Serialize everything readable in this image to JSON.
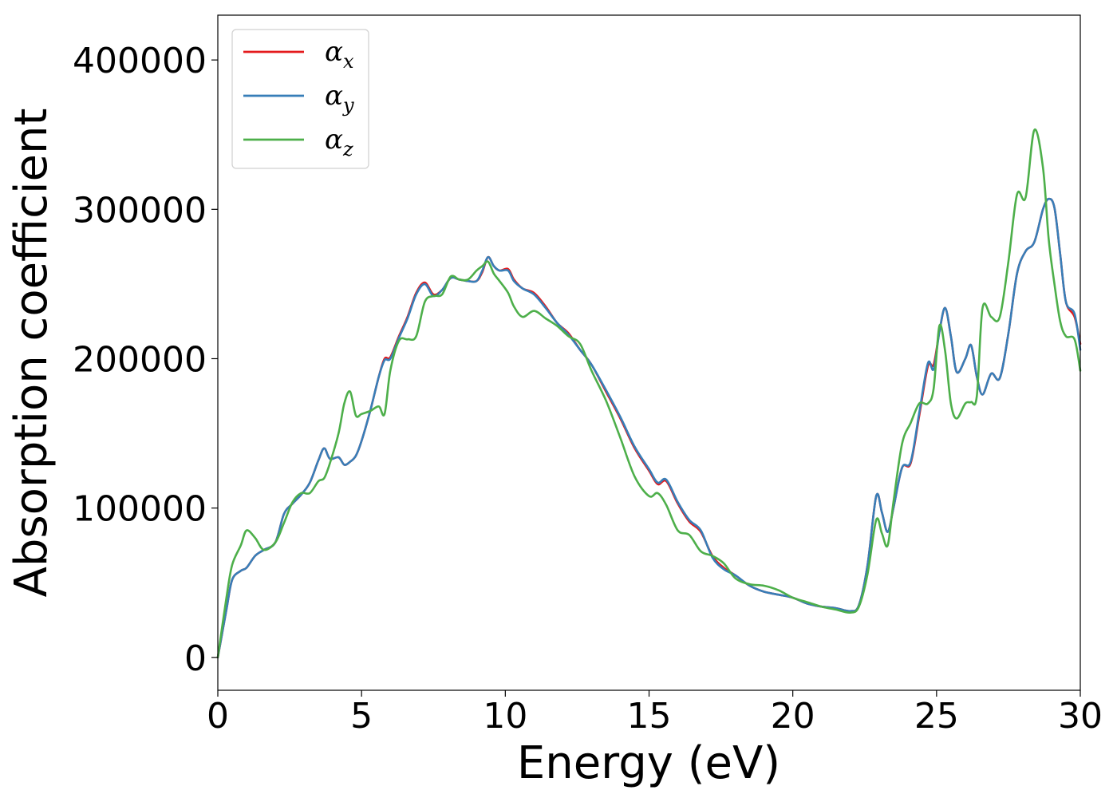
{
  "chart_data": {
    "type": "line",
    "xlabel": "Energy (eV)",
    "ylabel": "Absorption coefficient",
    "xlim": [
      0,
      30
    ],
    "ylim": [
      -22000,
      430000
    ],
    "xticks": [
      0,
      5,
      10,
      15,
      20,
      25,
      30
    ],
    "xtick_labels": [
      "0",
      "5",
      "10",
      "15",
      "20",
      "25",
      "30"
    ],
    "yticks": [
      0,
      100000,
      200000,
      300000,
      400000
    ],
    "ytick_labels": [
      "0",
      "100000",
      "200000",
      "300000",
      "400000"
    ],
    "grid": false,
    "legend_position": "top-left",
    "series": [
      {
        "name": "αx",
        "symbol": "α",
        "subscript": "x",
        "color": "#e41a1c",
        "x": [
          0,
          0.3,
          0.5,
          0.8,
          1.0,
          1.3,
          1.6,
          2.0,
          2.3,
          2.6,
          2.9,
          3.2,
          3.5,
          3.7,
          3.9,
          4.2,
          4.4,
          4.6,
          4.8,
          5.0,
          5.3,
          5.6,
          5.8,
          6.0,
          6.3,
          6.6,
          6.9,
          7.2,
          7.5,
          7.8,
          8.1,
          8.4,
          8.7,
          9.0,
          9.2,
          9.4,
          9.6,
          9.8,
          10.1,
          10.3,
          10.6,
          11.0,
          11.4,
          11.8,
          12.2,
          12.6,
          13.0,
          13.5,
          14.0,
          14.5,
          15.0,
          15.3,
          15.6,
          16.0,
          16.4,
          16.8,
          17.2,
          17.6,
          18.0,
          18.5,
          19.0,
          19.5,
          20.0,
          20.5,
          21.0,
          21.5,
          22.0,
          22.3,
          22.6,
          22.9,
          23.1,
          23.3,
          23.5,
          23.8,
          24.1,
          24.4,
          24.7,
          24.9,
          25.1,
          25.3,
          25.5,
          25.7,
          26.0,
          26.2,
          26.4,
          26.6,
          26.9,
          27.2,
          27.5,
          27.8,
          28.1,
          28.4,
          28.7,
          28.9,
          29.1,
          29.3,
          29.5,
          29.8,
          30.0
        ],
        "values": [
          0,
          32000,
          52000,
          58000,
          60000,
          68000,
          72000,
          77000,
          96000,
          103000,
          109000,
          117000,
          132000,
          140000,
          133000,
          134000,
          129000,
          131000,
          135000,
          145000,
          165000,
          188000,
          200000,
          201000,
          215000,
          228000,
          244000,
          251000,
          243000,
          246000,
          254000,
          253000,
          252000,
          252000,
          258000,
          268000,
          262000,
          259000,
          260000,
          253000,
          247000,
          244000,
          235000,
          224000,
          217000,
          206000,
          196000,
          178000,
          160000,
          140000,
          125000,
          116000,
          118000,
          103000,
          91000,
          84000,
          68000,
          60000,
          55000,
          48000,
          44000,
          42000,
          40000,
          36000,
          34000,
          33000,
          31000,
          35000,
          62000,
          108000,
          97000,
          84000,
          100000,
          127000,
          130000,
          162000,
          195000,
          196000,
          218000,
          234000,
          215000,
          191000,
          200000,
          209000,
          188000,
          176000,
          190000,
          187000,
          217000,
          257000,
          272000,
          278000,
          300000,
          307000,
          301000,
          270000,
          238000,
          228000,
          210000
        ]
      },
      {
        "name": "αy",
        "symbol": "α",
        "subscript": "y",
        "color": "#377eb8",
        "x": [
          0,
          0.3,
          0.5,
          0.8,
          1.0,
          1.3,
          1.6,
          2.0,
          2.3,
          2.6,
          2.9,
          3.2,
          3.5,
          3.7,
          3.9,
          4.2,
          4.4,
          4.6,
          4.8,
          5.0,
          5.3,
          5.6,
          5.8,
          6.0,
          6.3,
          6.6,
          6.9,
          7.2,
          7.5,
          7.8,
          8.1,
          8.4,
          8.7,
          9.0,
          9.2,
          9.4,
          9.6,
          9.8,
          10.1,
          10.3,
          10.6,
          11.0,
          11.4,
          11.8,
          12.2,
          12.6,
          13.0,
          13.5,
          14.0,
          14.5,
          15.0,
          15.3,
          15.6,
          16.0,
          16.4,
          16.8,
          17.2,
          17.6,
          18.0,
          18.5,
          19.0,
          19.5,
          20.0,
          20.5,
          21.0,
          21.5,
          22.0,
          22.3,
          22.6,
          22.9,
          23.1,
          23.3,
          23.5,
          23.8,
          24.1,
          24.4,
          24.7,
          24.9,
          25.1,
          25.3,
          25.5,
          25.7,
          26.0,
          26.2,
          26.4,
          26.6,
          26.9,
          27.2,
          27.5,
          27.8,
          28.1,
          28.4,
          28.7,
          28.9,
          29.1,
          29.3,
          29.5,
          29.8,
          30.0
        ],
        "values": [
          0,
          32000,
          52000,
          58000,
          60000,
          68000,
          72000,
          77000,
          96000,
          103000,
          109000,
          117000,
          132000,
          140000,
          133000,
          134000,
          129000,
          131000,
          135000,
          145000,
          165000,
          188000,
          199000,
          200000,
          214000,
          227000,
          243000,
          250000,
          242000,
          246000,
          254000,
          253000,
          252000,
          252000,
          259000,
          268000,
          262000,
          259000,
          259000,
          252000,
          247000,
          243000,
          234000,
          224000,
          216000,
          206000,
          196000,
          179000,
          161000,
          141000,
          126000,
          117000,
          119000,
          104000,
          92000,
          85000,
          67000,
          59000,
          55000,
          48000,
          44000,
          42000,
          40000,
          36000,
          34000,
          33000,
          31000,
          35000,
          62000,
          108000,
          97000,
          84000,
          100000,
          127000,
          131000,
          164000,
          197000,
          193000,
          218000,
          234000,
          215000,
          191000,
          200000,
          209000,
          188000,
          176000,
          190000,
          187000,
          217000,
          257000,
          272000,
          278000,
          300000,
          307000,
          301000,
          270000,
          238000,
          230000,
          206000
        ]
      },
      {
        "name": "αz",
        "symbol": "α",
        "subscript": "z",
        "color": "#4daf4a",
        "x": [
          0,
          0.3,
          0.5,
          0.8,
          1.0,
          1.3,
          1.6,
          2.0,
          2.3,
          2.6,
          2.9,
          3.2,
          3.5,
          3.7,
          3.9,
          4.2,
          4.4,
          4.6,
          4.8,
          5.0,
          5.3,
          5.6,
          5.8,
          6.0,
          6.3,
          6.6,
          6.9,
          7.2,
          7.5,
          7.8,
          8.1,
          8.4,
          8.7,
          9.0,
          9.2,
          9.4,
          9.6,
          9.8,
          10.1,
          10.3,
          10.6,
          11.0,
          11.4,
          11.8,
          12.2,
          12.6,
          13.0,
          13.5,
          14.0,
          14.5,
          15.0,
          15.3,
          15.6,
          16.0,
          16.4,
          16.8,
          17.2,
          17.6,
          18.0,
          18.5,
          19.0,
          19.5,
          20.0,
          20.5,
          21.0,
          21.5,
          22.0,
          22.3,
          22.6,
          22.9,
          23.1,
          23.3,
          23.5,
          23.8,
          24.1,
          24.4,
          24.7,
          24.9,
          25.1,
          25.3,
          25.5,
          25.7,
          26.0,
          26.2,
          26.4,
          26.6,
          26.9,
          27.2,
          27.5,
          27.8,
          28.1,
          28.4,
          28.7,
          28.9,
          29.1,
          29.3,
          29.5,
          29.8,
          30.0
        ],
        "values": [
          0,
          40000,
          62000,
          75000,
          85000,
          80000,
          72000,
          77000,
          90000,
          104000,
          110000,
          110000,
          118000,
          120000,
          130000,
          150000,
          170000,
          178000,
          162000,
          163000,
          165000,
          168000,
          163000,
          192000,
          212000,
          213000,
          215000,
          238000,
          242000,
          243000,
          255000,
          253000,
          253000,
          259000,
          262000,
          265000,
          257000,
          252000,
          244000,
          235000,
          228000,
          232000,
          227000,
          222000,
          215000,
          210000,
          192000,
          172000,
          147000,
          121000,
          108000,
          110000,
          102000,
          85000,
          82000,
          71000,
          68000,
          63000,
          53000,
          49000,
          48000,
          45000,
          40000,
          37000,
          34000,
          32000,
          30000,
          34000,
          56000,
          92000,
          83000,
          75000,
          104000,
          143000,
          157000,
          170000,
          170000,
          180000,
          222000,
          205000,
          170000,
          160000,
          170000,
          171000,
          175000,
          234000,
          228000,
          228000,
          265000,
          310000,
          308000,
          353000,
          328000,
          280000,
          250000,
          225000,
          215000,
          213000,
          192000
        ]
      }
    ]
  }
}
